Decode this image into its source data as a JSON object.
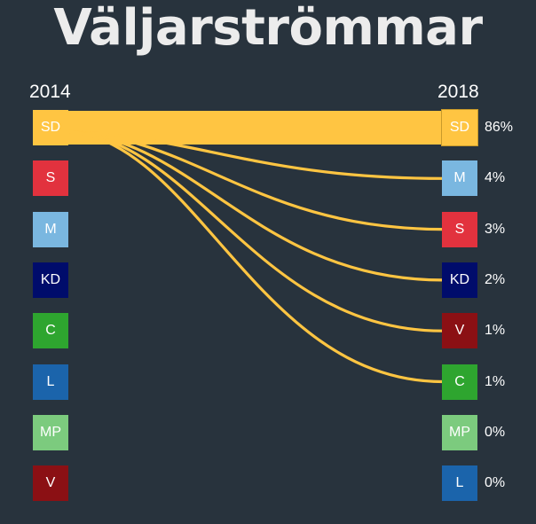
{
  "title": "Väljarströmmar",
  "year_left": "2014",
  "year_right": "2018",
  "flow_color": "#ffc542",
  "chart_data": {
    "type": "sankey",
    "source_party": "SD",
    "left_parties": [
      {
        "label": "SD",
        "color": "#ffc542"
      },
      {
        "label": "S",
        "color": "#e2323e"
      },
      {
        "label": "M",
        "color": "#7ab7e0"
      },
      {
        "label": "KD",
        "color": "#000c6b"
      },
      {
        "label": "C",
        "color": "#2ea52f"
      },
      {
        "label": "L",
        "color": "#1b64ab"
      },
      {
        "label": "MP",
        "color": "#7ccb7e"
      },
      {
        "label": "V",
        "color": "#8b1014"
      }
    ],
    "right_parties": [
      {
        "label": "SD",
        "color": "#ffc542",
        "percent": "86%",
        "value": 86
      },
      {
        "label": "M",
        "color": "#7ab7e0",
        "percent": "4%",
        "value": 4
      },
      {
        "label": "S",
        "color": "#e2323e",
        "percent": "3%",
        "value": 3
      },
      {
        "label": "KD",
        "color": "#000c6b",
        "percent": "2%",
        "value": 2
      },
      {
        "label": "V",
        "color": "#8b1014",
        "percent": "1%",
        "value": 1
      },
      {
        "label": "C",
        "color": "#2ea52f",
        "percent": "1%",
        "value": 1
      },
      {
        "label": "MP",
        "color": "#7ccb7e",
        "percent": "0%",
        "value": 0
      },
      {
        "label": "L",
        "color": "#1b64ab",
        "percent": "0%",
        "value": 0
      }
    ]
  }
}
